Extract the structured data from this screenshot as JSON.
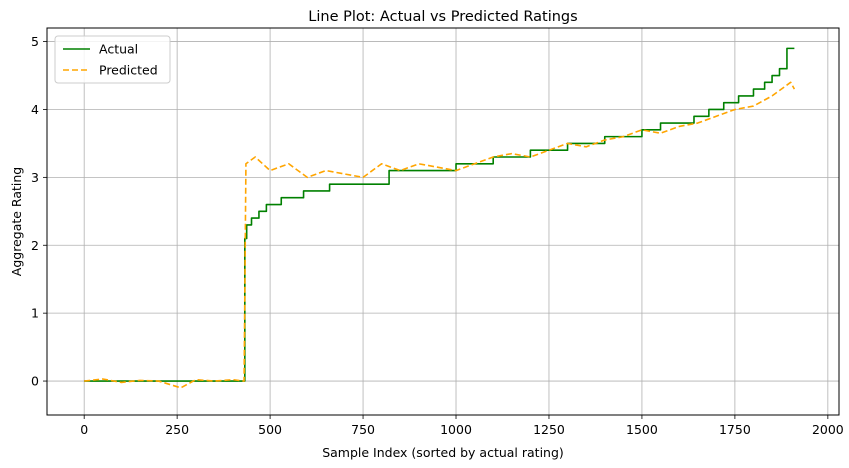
{
  "chart_data": {
    "type": "line",
    "title": "Line Plot: Actual vs Predicted Ratings",
    "xlabel": "Sample Index (sorted by actual rating)",
    "ylabel": "Aggregate Rating",
    "xlim": [
      -100,
      2030
    ],
    "ylim": [
      -0.5,
      5.2
    ],
    "xticks": [
      0,
      250,
      500,
      750,
      1000,
      1250,
      1500,
      1750,
      2000
    ],
    "yticks": [
      0,
      1,
      2,
      3,
      4,
      5
    ],
    "grid": true,
    "legend_position": "top-left",
    "series": [
      {
        "name": "Actual",
        "color": "#008000",
        "style": "solid",
        "x": [
          0,
          431,
          432,
          437,
          450,
          470,
          490,
          530,
          590,
          660,
          820,
          900,
          1000,
          1100,
          1200,
          1300,
          1400,
          1500,
          1550,
          1600,
          1640,
          1680,
          1720,
          1760,
          1800,
          1830,
          1850,
          1870,
          1890,
          1910
        ],
        "y": [
          0.0,
          0.0,
          2.1,
          2.3,
          2.4,
          2.5,
          2.6,
          2.7,
          2.8,
          2.9,
          3.1,
          3.1,
          3.2,
          3.3,
          3.4,
          3.5,
          3.6,
          3.7,
          3.8,
          3.8,
          3.9,
          4.0,
          4.1,
          4.2,
          4.3,
          4.4,
          4.5,
          4.6,
          4.9,
          4.9
        ]
      },
      {
        "name": "Predicted",
        "color": "#FFA500",
        "style": "dashed",
        "x": [
          0,
          50,
          100,
          150,
          200,
          260,
          300,
          350,
          400,
          430,
          435,
          460,
          500,
          550,
          600,
          650,
          700,
          750,
          800,
          850,
          900,
          950,
          1000,
          1050,
          1100,
          1150,
          1200,
          1250,
          1300,
          1350,
          1400,
          1450,
          1500,
          1550,
          1600,
          1650,
          1700,
          1750,
          1800,
          1850,
          1900,
          1910
        ],
        "y": [
          0.0,
          0.03,
          -0.02,
          0.01,
          0.0,
          -0.1,
          0.02,
          0.0,
          0.02,
          0.0,
          3.2,
          3.3,
          3.1,
          3.2,
          3.0,
          3.1,
          3.05,
          3.0,
          3.2,
          3.1,
          3.2,
          3.15,
          3.1,
          3.2,
          3.3,
          3.35,
          3.3,
          3.4,
          3.5,
          3.45,
          3.55,
          3.6,
          3.7,
          3.65,
          3.75,
          3.8,
          3.9,
          4.0,
          4.05,
          4.2,
          4.4,
          4.3
        ]
      }
    ]
  }
}
